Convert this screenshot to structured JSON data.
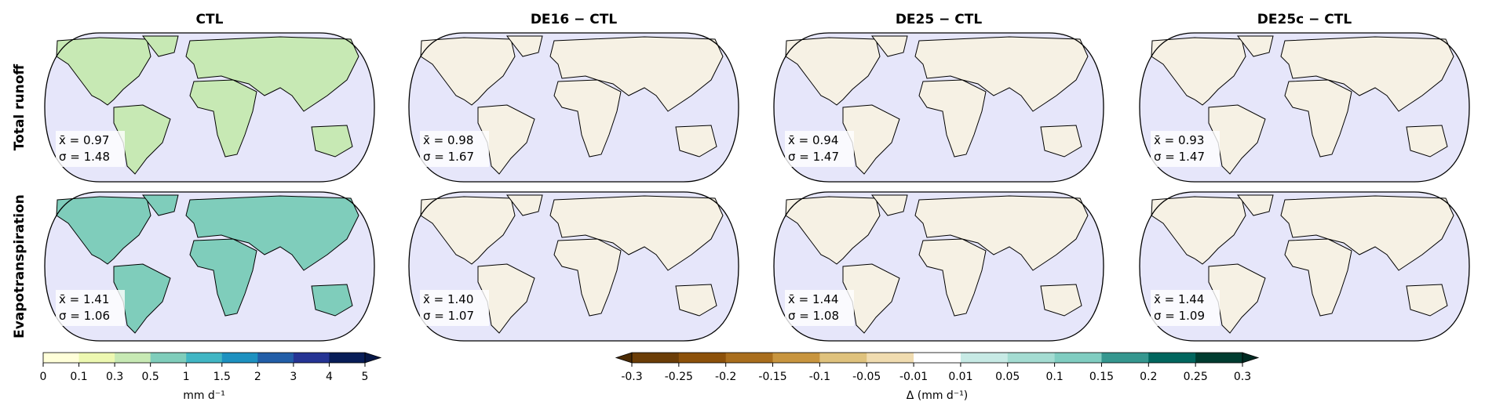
{
  "columns": [
    "CTL",
    "DE16 − CTL",
    "DE25 − CTL",
    "DE25c − CTL"
  ],
  "rows": [
    {
      "label": "Total runoff",
      "panels": [
        {
          "mean": "x̄ = 0.97",
          "std": "σ = 1.48"
        },
        {
          "mean": "x̄ = 0.98",
          "std": "σ = 1.67"
        },
        {
          "mean": "x̄ = 0.94",
          "std": "σ = 1.47"
        },
        {
          "mean": "x̄ = 0.93",
          "std": "σ = 1.47"
        }
      ]
    },
    {
      "label": "Evapotranspiration",
      "panels": [
        {
          "mean": "x̄ = 1.41",
          "std": "σ = 1.06"
        },
        {
          "mean": "x̄ = 1.40",
          "std": "σ = 1.07"
        },
        {
          "mean": "x̄ = 1.44",
          "std": "σ = 1.08"
        },
        {
          "mean": "x̄ = 1.44",
          "std": "σ = 1.09"
        }
      ]
    }
  ],
  "colorbars": [
    {
      "label": "mm d⁻¹",
      "ticks": [
        0,
        0.1,
        0.3,
        0.5,
        1,
        1.5,
        2,
        3,
        4,
        5
      ],
      "colors": [
        "#ffffd9",
        "#edf8b1",
        "#c7e9b4",
        "#7fcdbb",
        "#41b6c4",
        "#1d91c0",
        "#225ea8",
        "#253494",
        "#081d58"
      ],
      "extend": "max",
      "extend_colors": [
        "#ffffd9",
        "#061746"
      ]
    },
    {
      "label": "Δ (mm d⁻¹)",
      "ticks": [
        -0.3,
        -0.25,
        -0.2,
        -0.15,
        -0.1,
        -0.05,
        -0.01,
        0.01,
        0.05,
        0.1,
        0.15,
        0.2,
        0.25,
        0.3
      ],
      "colors": [
        "#6b3d07",
        "#8c510a",
        "#a96e1d",
        "#c8953f",
        "#dfc27d",
        "#f0dcb0",
        "#ffffff",
        "#c7eae5",
        "#a4dcd2",
        "#80cdc1",
        "#35978f",
        "#01665e",
        "#003c30"
      ],
      "extend": "both",
      "extend_colors": [
        "#4a2a04",
        "#002a22"
      ]
    }
  ]
}
